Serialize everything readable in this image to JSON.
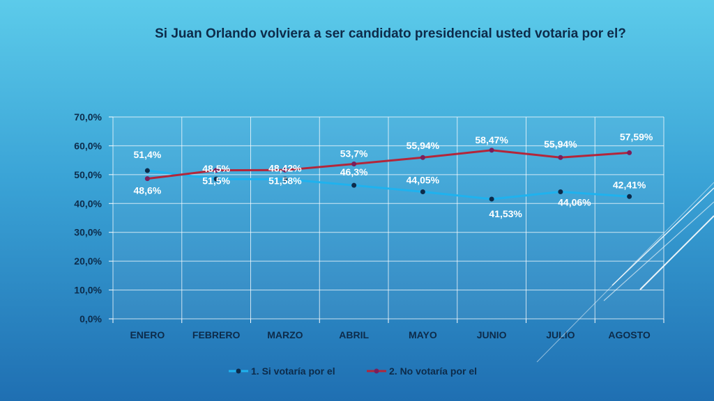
{
  "chart_data": {
    "type": "line",
    "title": "Si Juan Orlando volviera a ser candidato presidencial usted votaria por el?",
    "categories": [
      "ENERO",
      "FEBRERO",
      "MARZO",
      "ABRIL",
      "MAYO",
      "JUNIO",
      "JULIO",
      "AGOSTO"
    ],
    "ylim": [
      0,
      70
    ],
    "yticks": [
      "0,0%",
      "10,0%",
      "20,0%",
      "30,0%",
      "40,0%",
      "50,0%",
      "60,0%",
      "70,0%"
    ],
    "grid": true,
    "legend_position": "bottom",
    "series": [
      {
        "name": "1. Si votaría por el",
        "color": "#1fb2ee",
        "marker_color": "#0d2b4a",
        "values": [
          51.4,
          48.5,
          48.42,
          46.3,
          44.05,
          41.53,
          44.06,
          42.41
        ],
        "labels": [
          "51,4%",
          "48,5%",
          "48,42%",
          "46,3%",
          "44,05%",
          "41,53%",
          "44,06%",
          "42,41%"
        ]
      },
      {
        "name": "2. No votaría por el",
        "color": "#b3263a",
        "marker_color": "#7a1f5c",
        "values": [
          48.6,
          51.5,
          51.58,
          53.7,
          55.94,
          58.47,
          55.94,
          57.59
        ],
        "labels": [
          "48,6%",
          "51,5%",
          "51,58%",
          "53,7%",
          "55,94%",
          "58,47%",
          "55,94%",
          "57,59%"
        ]
      }
    ]
  }
}
